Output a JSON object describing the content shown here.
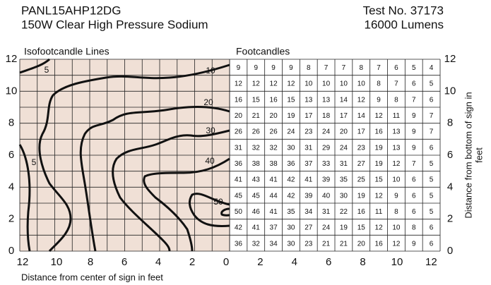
{
  "header": {
    "model": "PANL15AHP12DG",
    "description": "150W Clear High Pressure Sodium",
    "test": "Test No. 37173",
    "lumens": "16000 Lumens"
  },
  "iso_panel": {
    "title": "Isofootcandle Lines",
    "contour_labels": [
      5,
      10,
      20,
      30,
      40,
      50,
      5
    ]
  },
  "table": {
    "title": "Footcandles",
    "rows": [
      [
        9,
        9,
        9,
        9,
        8,
        7,
        7,
        8,
        7,
        6,
        5,
        4
      ],
      [
        12,
        12,
        12,
        12,
        10,
        10,
        10,
        10,
        8,
        7,
        6,
        5
      ],
      [
        16,
        15,
        16,
        15,
        13,
        13,
        14,
        12,
        9,
        8,
        7,
        6
      ],
      [
        20,
        21,
        20,
        19,
        17,
        18,
        17,
        14,
        12,
        11,
        9,
        7
      ],
      [
        26,
        26,
        26,
        24,
        23,
        24,
        20,
        17,
        16,
        13,
        9,
        7
      ],
      [
        31,
        32,
        32,
        30,
        31,
        29,
        24,
        23,
        19,
        13,
        9,
        6
      ],
      [
        36,
        38,
        38,
        36,
        37,
        33,
        31,
        27,
        19,
        12,
        7,
        5
      ],
      [
        41,
        43,
        41,
        42,
        41,
        39,
        35,
        25,
        15,
        10,
        6,
        5
      ],
      [
        45,
        45,
        44,
        42,
        39,
        40,
        30,
        19,
        12,
        9,
        6,
        5
      ],
      [
        50,
        46,
        41,
        35,
        34,
        31,
        22,
        16,
        11,
        8,
        6,
        5
      ],
      [
        42,
        41,
        37,
        30,
        27,
        24,
        19,
        15,
        12,
        10,
        8,
        6
      ],
      [
        36,
        32,
        34,
        30,
        23,
        21,
        21,
        20,
        16,
        12,
        9,
        6
      ]
    ]
  },
  "axes": {
    "left_y_ticks": [
      0,
      2,
      4,
      6,
      8,
      10,
      12
    ],
    "right_y_ticks": [
      0,
      2,
      4,
      6,
      8,
      10,
      12
    ],
    "x_ticks_left": [
      12,
      10,
      8,
      6,
      4,
      2,
      0
    ],
    "x_ticks_right": [
      2,
      4,
      6,
      8,
      10,
      12
    ],
    "x_title": "Distance from center of sign in feet",
    "y2_title": [
      "Distance from bottom of sign in",
      "feet"
    ]
  }
}
